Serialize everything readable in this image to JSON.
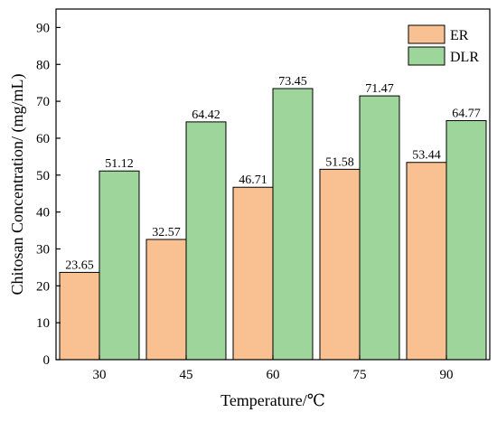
{
  "chart_data": {
    "type": "bar",
    "categories": [
      "30",
      "45",
      "60",
      "75",
      "90"
    ],
    "series": [
      {
        "name": "ER",
        "values": [
          23.65,
          32.57,
          46.71,
          51.58,
          53.44
        ],
        "color": "#f9c192"
      },
      {
        "name": "DLR",
        "values": [
          51.12,
          64.42,
          73.45,
          71.47,
          64.77
        ],
        "color": "#9dd59a"
      }
    ],
    "value_labels": {
      "ER": [
        "23.65",
        "32.57",
        "46.71",
        "51.58",
        "53.44"
      ],
      "DLR": [
        "51.12",
        "64.42",
        "73.45",
        "71.47",
        "64.77"
      ]
    },
    "xlabel": "Temperature/℃",
    "ylabel": "Chitosan Concentration/ (mg/mL)",
    "ylim": [
      0,
      95
    ],
    "yticks": [
      "0",
      "10",
      "20",
      "30",
      "40",
      "50",
      "60",
      "70",
      "80",
      "90"
    ],
    "legend_position": "top-right",
    "grid": false,
    "bar_edge_color": "#000000"
  }
}
